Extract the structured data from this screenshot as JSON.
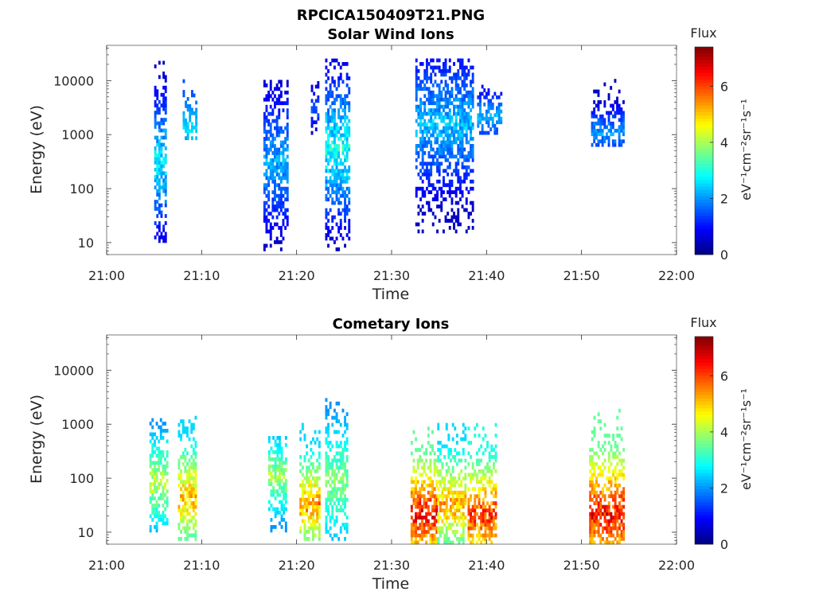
{
  "figure": {
    "main_title": "RPCICA150409T21.PNG"
  },
  "chart_data": [
    {
      "type": "heatmap",
      "title": "Solar Wind Ions",
      "xlabel": "Time",
      "ylabel": "Energy (eV)",
      "xlim": [
        "21:00",
        "22:00"
      ],
      "ylim": [
        6,
        45000
      ],
      "yscale": "log",
      "x_ticks": [
        "21:00",
        "21:10",
        "21:20",
        "21:30",
        "21:40",
        "21:50",
        "22:00"
      ],
      "y_ticks": [
        10,
        100,
        1000,
        10000
      ],
      "y_tick_labels": [
        "10",
        "100",
        "1000",
        "10000"
      ],
      "colorbar": {
        "title": "Flux",
        "label": "eV⁻¹cm⁻²sr⁻¹s⁻¹",
        "range": [
          0,
          7.4
        ],
        "ticks": [
          "0",
          "2",
          "4",
          "6"
        ],
        "colormap": "jet"
      },
      "clusters": [
        {
          "t_min": 5.0,
          "t_max": 6.2,
          "e_min": 10,
          "e_max": 20000,
          "peak_e": 300,
          "flux_range": [
            0.5,
            3.2
          ]
        },
        {
          "t_min": 8.0,
          "t_max": 9.5,
          "e_min": 800,
          "e_max": 15000,
          "peak_e": 1200,
          "flux_range": [
            1.5,
            2.8
          ]
        },
        {
          "t_min": 16.5,
          "t_max": 19.0,
          "e_min": 7,
          "e_max": 9000,
          "peak_e": 300,
          "flux_range": [
            0.5,
            2.6
          ]
        },
        {
          "t_min": 21.5,
          "t_max": 22.3,
          "e_min": 1000,
          "e_max": 9000,
          "peak_e": 3000,
          "flux_range": [
            0.5,
            2.0
          ]
        },
        {
          "t_min": 23.0,
          "t_max": 25.5,
          "e_min": 7,
          "e_max": 25000,
          "peak_e": 500,
          "flux_range": [
            0.5,
            3.5
          ]
        },
        {
          "t_min": 32.5,
          "t_max": 38.5,
          "e_min": 15,
          "e_max": 25000,
          "peak_e": 1500,
          "flux_range": [
            0.5,
            2.8
          ]
        },
        {
          "t_min": 39.0,
          "t_max": 41.5,
          "e_min": 1000,
          "e_max": 8000,
          "peak_e": 2000,
          "flux_range": [
            1.0,
            2.6
          ]
        },
        {
          "t_min": 51.0,
          "t_max": 54.5,
          "e_min": 600,
          "e_max": 10000,
          "peak_e": 1000,
          "flux_range": [
            0.5,
            2.5
          ]
        }
      ]
    },
    {
      "type": "heatmap",
      "title": "Cometary Ions",
      "xlabel": "Time",
      "ylabel": "Energy (eV)",
      "xlim": [
        "21:00",
        "22:00"
      ],
      "ylim": [
        6,
        45000
      ],
      "yscale": "log",
      "x_ticks": [
        "21:00",
        "21:10",
        "21:20",
        "21:30",
        "21:40",
        "21:50",
        "22:00"
      ],
      "y_ticks": [
        10,
        100,
        1000,
        10000
      ],
      "y_tick_labels": [
        "10",
        "100",
        "1000",
        "10000"
      ],
      "colorbar": {
        "title": "Flux",
        "label": "eV⁻¹cm⁻²sr⁻¹s⁻¹",
        "range": [
          0,
          7.4
        ],
        "ticks": [
          "0",
          "2",
          "4",
          "6"
        ],
        "colormap": "jet"
      },
      "clusters": [
        {
          "t_min": 4.5,
          "t_max": 6.3,
          "e_min": 10,
          "e_max": 1200,
          "peak_e": 80,
          "flux_range": [
            2.0,
            4.8
          ]
        },
        {
          "t_min": 7.5,
          "t_max": 9.3,
          "e_min": 7,
          "e_max": 1500,
          "peak_e": 40,
          "flux_range": [
            2.5,
            5.8
          ]
        },
        {
          "t_min": 17.0,
          "t_max": 18.8,
          "e_min": 10,
          "e_max": 600,
          "peak_e": 100,
          "flux_range": [
            2.0,
            4.5
          ]
        },
        {
          "t_min": 20.3,
          "t_max": 22.3,
          "e_min": 7,
          "e_max": 1000,
          "peak_e": 30,
          "flux_range": [
            2.5,
            6.2
          ]
        },
        {
          "t_min": 23.0,
          "t_max": 25.3,
          "e_min": 7,
          "e_max": 3000,
          "peak_e": 80,
          "flux_range": [
            2.0,
            4.2
          ]
        },
        {
          "t_min": 32.0,
          "t_max": 34.8,
          "e_min": 6,
          "e_max": 1000,
          "peak_e": 20,
          "flux_range": [
            3.5,
            7.2
          ]
        },
        {
          "t_min": 34.8,
          "t_max": 37.8,
          "e_min": 6,
          "e_max": 1000,
          "peak_e": 30,
          "flux_range": [
            2.5,
            6.0
          ]
        },
        {
          "t_min": 38.0,
          "t_max": 41.0,
          "e_min": 6,
          "e_max": 1000,
          "peak_e": 20,
          "flux_range": [
            3.0,
            7.0
          ]
        },
        {
          "t_min": 50.8,
          "t_max": 54.5,
          "e_min": 6,
          "e_max": 1800,
          "peak_e": 20,
          "flux_range": [
            3.5,
            7.2
          ]
        }
      ]
    }
  ]
}
